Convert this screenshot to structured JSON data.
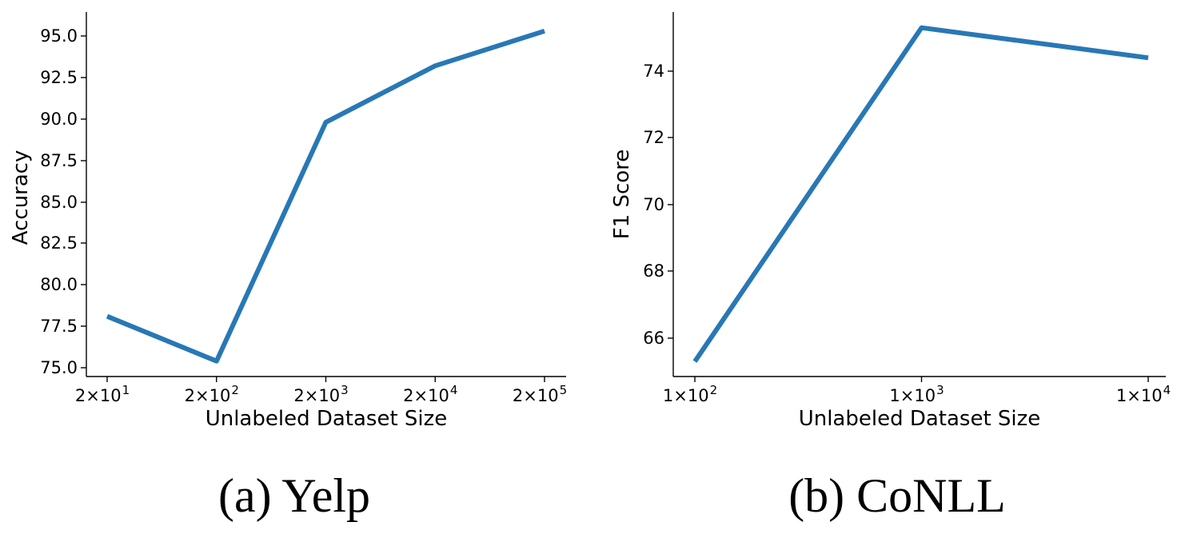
{
  "chart_data": [
    {
      "type": "line",
      "caption": "(a) Yelp",
      "xlabel": "Unlabeled Dataset Size",
      "ylabel": "Accuracy",
      "x_scale": "log",
      "x": [
        20,
        200,
        2000,
        20000,
        200000
      ],
      "x_ticks": [
        {
          "value": 20,
          "base": "2×10",
          "exp": "1"
        },
        {
          "value": 200,
          "base": "2×10",
          "exp": "2"
        },
        {
          "value": 2000,
          "base": "2×10",
          "exp": "3"
        },
        {
          "value": 20000,
          "base": "2×10",
          "exp": "4"
        },
        {
          "value": 200000,
          "base": "2×10",
          "exp": "5"
        }
      ],
      "y_ticks": [
        "75.0",
        "77.5",
        "80.0",
        "82.5",
        "85.0",
        "87.5",
        "90.0",
        "92.5",
        "95.0"
      ],
      "ylim": [
        74.35,
        96.75
      ],
      "series": [
        {
          "values": [
            78.1,
            75.4,
            89.8,
            93.2,
            95.3
          ],
          "color": "#2878b5"
        }
      ],
      "grid": false,
      "legend": "none"
    },
    {
      "type": "line",
      "caption": "(b) CoNLL",
      "xlabel": "Unlabeled Dataset Size",
      "ylabel": "F1 Score",
      "x_scale": "log",
      "x": [
        100,
        1000,
        10000
      ],
      "x_ticks": [
        {
          "value": 100,
          "base": "1×10",
          "exp": "2"
        },
        {
          "value": 1000,
          "base": "1×10",
          "exp": "3"
        },
        {
          "value": 10000,
          "base": "1×10",
          "exp": "4"
        }
      ],
      "y_ticks": [
        "66",
        "68",
        "70",
        "72",
        "74"
      ],
      "ylim": [
        64.8,
        75.8
      ],
      "series": [
        {
          "values": [
            65.3,
            75.3,
            74.4
          ],
          "color": "#2878b5"
        }
      ],
      "grid": false,
      "legend": "none"
    }
  ]
}
